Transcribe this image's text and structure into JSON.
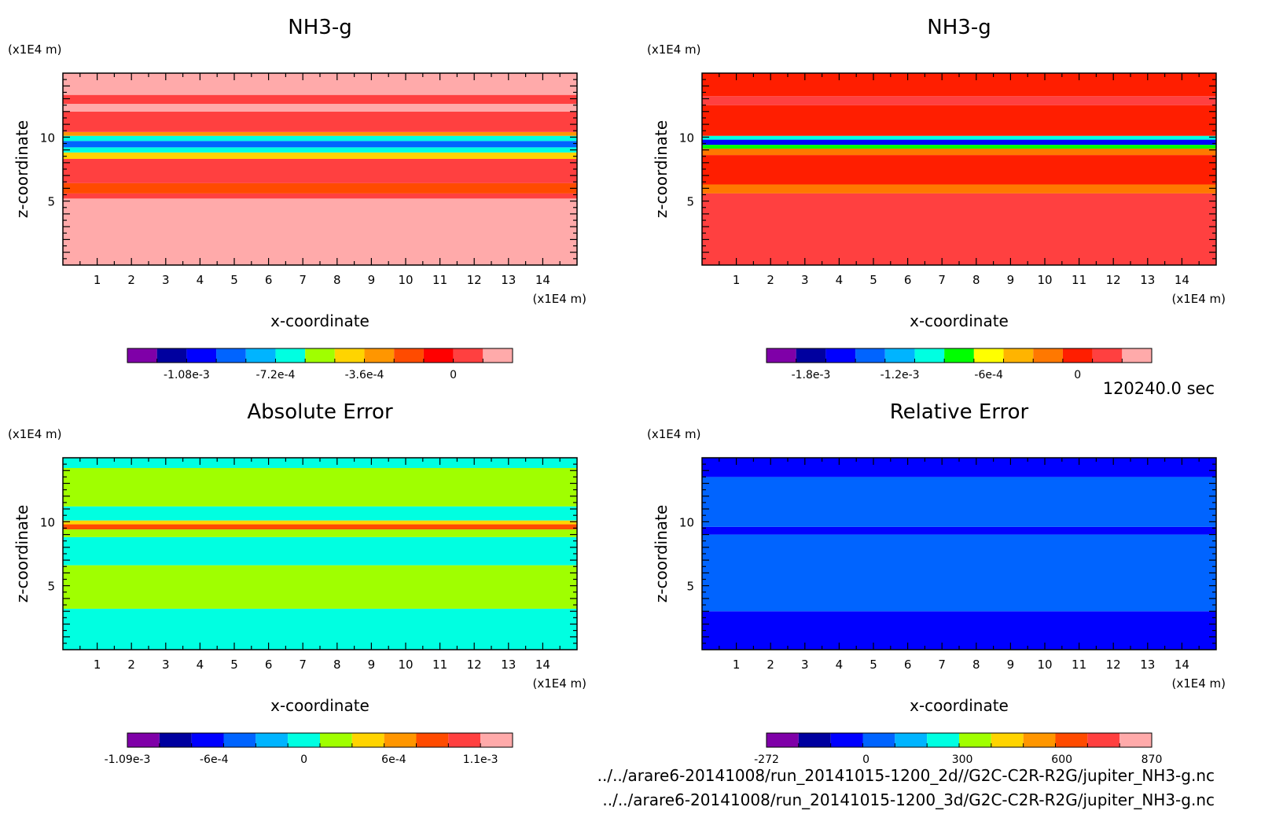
{
  "time_label": "120240.0 sec",
  "files": [
    "../../arare6-20141008/run_20141015-1200_2d//G2C-C2R-R2G/jupiter_NH3-g.nc",
    "../../arare6-20141008/run_20141015-1200_3d/G2C-C2R-R2G/jupiter_NH3-g.nc"
  ],
  "chart_data": [
    {
      "type": "heatmap",
      "title": "NH3-g",
      "xlabel": "x-coordinate",
      "ylabel": "z-coordinate",
      "x_unit": "(x1E4 m)",
      "y_unit": "(x1E4 m)",
      "xlim": [
        0,
        15
      ],
      "ylim": [
        0,
        15
      ],
      "x_ticks": [
        1,
        2,
        3,
        4,
        5,
        6,
        7,
        8,
        9,
        10,
        11,
        12,
        13,
        14
      ],
      "y_ticks": [
        5,
        10
      ],
      "colorbar": {
        "colors": [
          "#7f00a8",
          "#00009f",
          "#0000ff",
          "#0064ff",
          "#00b4ff",
          "#00ffe1",
          "#a0ff00",
          "#ffd400",
          "#ff9600",
          "#ff4b00",
          "#ff0000",
          "#ff4040",
          "#ffaaaa"
        ],
        "tick_labels": [
          "-1.08e-3",
          "-7.2e-4",
          "-3.6e-4",
          "0"
        ],
        "tick_positions": [
          2,
          5,
          8,
          11
        ]
      },
      "bands": [
        {
          "z_range": [
            0,
            5.2
          ],
          "color": "#ffaaaa"
        },
        {
          "z_range": [
            5.2,
            5.6
          ],
          "color": "#ff4040"
        },
        {
          "z_range": [
            5.6,
            6.4
          ],
          "color": "#ff4b00"
        },
        {
          "z_range": [
            6.4,
            8.3
          ],
          "color": "#ff4040"
        },
        {
          "z_range": [
            8.3,
            8.8
          ],
          "color": "#ffd400"
        },
        {
          "z_range": [
            8.8,
            9.2
          ],
          "color": "#00ffe1"
        },
        {
          "z_range": [
            9.2,
            9.7
          ],
          "color": "#0064ff"
        },
        {
          "z_range": [
            9.7,
            10.1
          ],
          "color": "#00ffe1"
        },
        {
          "z_range": [
            10.1,
            10.4
          ],
          "color": "#ff9600"
        },
        {
          "z_range": [
            10.4,
            12.0
          ],
          "color": "#ff4040"
        },
        {
          "z_range": [
            12.0,
            12.6
          ],
          "color": "#ffaaaa"
        },
        {
          "z_range": [
            12.6,
            13.3
          ],
          "color": "#ff4040"
        },
        {
          "z_range": [
            13.3,
            15
          ],
          "color": "#ffaaaa"
        }
      ]
    },
    {
      "type": "heatmap",
      "title": "NH3-g",
      "xlabel": "x-coordinate",
      "ylabel": "z-coordinate",
      "x_unit": "(x1E4 m)",
      "y_unit": "(x1E4 m)",
      "xlim": [
        0,
        15
      ],
      "ylim": [
        0,
        15
      ],
      "x_ticks": [
        1,
        2,
        3,
        4,
        5,
        6,
        7,
        8,
        9,
        10,
        11,
        12,
        13,
        14
      ],
      "y_ticks": [
        5,
        10
      ],
      "colorbar": {
        "colors": [
          "#7f00a8",
          "#00009f",
          "#0000ff",
          "#0064ff",
          "#00b4ff",
          "#00ffe1",
          "#00ff00",
          "#ffff00",
          "#ffb400",
          "#ff7800",
          "#ff1e00",
          "#ff4040",
          "#ffaaaa"
        ],
        "tick_labels": [
          "-1.8e-3",
          "-1.2e-3",
          "-6e-4",
          "0"
        ],
        "tick_positions": [
          1.5,
          4.5,
          7.5,
          10.5
        ]
      },
      "bands": [
        {
          "z_range": [
            0,
            5.6
          ],
          "color": "#ff4040"
        },
        {
          "z_range": [
            5.6,
            6.3
          ],
          "color": "#ff7800"
        },
        {
          "z_range": [
            6.3,
            8.6
          ],
          "color": "#ff1e00"
        },
        {
          "z_range": [
            8.6,
            9.1
          ],
          "color": "#ff7800"
        },
        {
          "z_range": [
            9.1,
            9.4
          ],
          "color": "#00ff00"
        },
        {
          "z_range": [
            9.4,
            9.8
          ],
          "color": "#0000ff"
        },
        {
          "z_range": [
            9.8,
            10.1
          ],
          "color": "#00ffe1"
        },
        {
          "z_range": [
            10.1,
            12.5
          ],
          "color": "#ff1e00"
        },
        {
          "z_range": [
            12.5,
            13.2
          ],
          "color": "#ff4040"
        },
        {
          "z_range": [
            13.2,
            15
          ],
          "color": "#ff1e00"
        }
      ]
    },
    {
      "type": "heatmap",
      "title": "Absolute Error",
      "xlabel": "x-coordinate",
      "ylabel": "z-coordinate",
      "x_unit": "(x1E4 m)",
      "y_unit": "(x1E4 m)",
      "xlim": [
        0,
        15
      ],
      "ylim": [
        0,
        15
      ],
      "x_ticks": [
        1,
        2,
        3,
        4,
        5,
        6,
        7,
        8,
        9,
        10,
        11,
        12,
        13,
        14
      ],
      "y_ticks": [
        5,
        10
      ],
      "colorbar": {
        "colors": [
          "#7f00a8",
          "#00009f",
          "#0000ff",
          "#0064ff",
          "#00b4ff",
          "#00ffe1",
          "#a0ff00",
          "#ffd400",
          "#ff9600",
          "#ff4b00",
          "#ff4040",
          "#ffaaaa"
        ],
        "tick_labels": [
          "-1.09e-3",
          "-6e-4",
          "0",
          "6e-4",
          "1.1e-3"
        ],
        "tick_positions": [
          0,
          2.7,
          5.5,
          8.3,
          11
        ]
      },
      "bands": [
        {
          "z_range": [
            0,
            3.2
          ],
          "color": "#00ffe1"
        },
        {
          "z_range": [
            3.2,
            6.6
          ],
          "color": "#a0ff00"
        },
        {
          "z_range": [
            6.6,
            8.8
          ],
          "color": "#00ffe1"
        },
        {
          "z_range": [
            8.8,
            9.4
          ],
          "color": "#a0ff00"
        },
        {
          "z_range": [
            9.4,
            9.8
          ],
          "color": "#ff4b00"
        },
        {
          "z_range": [
            9.8,
            10.1
          ],
          "color": "#ffd400"
        },
        {
          "z_range": [
            10.1,
            11.2
          ],
          "color": "#00ffe1"
        },
        {
          "z_range": [
            11.2,
            14.2
          ],
          "color": "#a0ff00"
        },
        {
          "z_range": [
            14.2,
            15
          ],
          "color": "#00ffe1"
        }
      ]
    },
    {
      "type": "heatmap",
      "title": "Relative Error",
      "xlabel": "x-coordinate",
      "ylabel": "z-coordinate",
      "x_unit": "(x1E4 m)",
      "y_unit": "(x1E4 m)",
      "xlim": [
        0,
        15
      ],
      "ylim": [
        0,
        15
      ],
      "x_ticks": [
        1,
        2,
        3,
        4,
        5,
        6,
        7,
        8,
        9,
        10,
        11,
        12,
        13,
        14
      ],
      "y_ticks": [
        5,
        10
      ],
      "colorbar": {
        "colors": [
          "#7f00a8",
          "#00009f",
          "#0000ff",
          "#0064ff",
          "#00b4ff",
          "#00ffe1",
          "#a0ff00",
          "#ffd400",
          "#ff9600",
          "#ff4b00",
          "#ff4040",
          "#ffaaaa"
        ],
        "tick_labels": [
          "-272",
          "0",
          "300",
          "600",
          "870"
        ],
        "tick_positions": [
          0,
          3.1,
          6.1,
          9.2,
          12
        ]
      },
      "bands": [
        {
          "z_range": [
            0,
            3.0
          ],
          "color": "#0000ff"
        },
        {
          "z_range": [
            3.0,
            9.0
          ],
          "color": "#0064ff"
        },
        {
          "z_range": [
            9.0,
            9.6
          ],
          "color": "#0000ff"
        },
        {
          "z_range": [
            9.6,
            13.5
          ],
          "color": "#0064ff"
        },
        {
          "z_range": [
            13.5,
            15
          ],
          "color": "#0000ff"
        }
      ]
    }
  ]
}
